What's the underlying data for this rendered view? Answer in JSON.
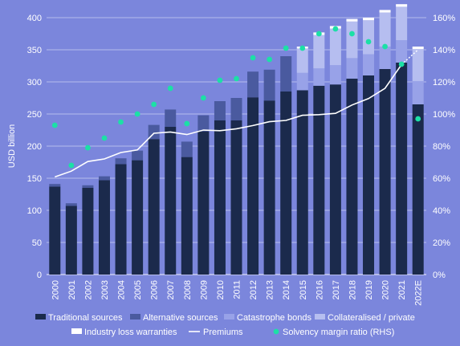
{
  "chart_data": {
    "type": "bar",
    "ylabel": "USD billion",
    "ylim": [
      0,
      400
    ],
    "y2lim": [
      0,
      160
    ],
    "y_ticks": [
      0,
      50,
      100,
      150,
      200,
      250,
      300,
      350,
      400
    ],
    "y2_ticks": [
      "0%",
      "20%",
      "40%",
      "60%",
      "80%",
      "100%",
      "120%",
      "140%",
      "160%"
    ],
    "categories": [
      "2000",
      "2001",
      "2002",
      "2003",
      "2004",
      "2005",
      "2006",
      "2007",
      "2008",
      "2009",
      "2010",
      "2011",
      "2012",
      "2013",
      "2014",
      "2015",
      "2016",
      "2017",
      "2018",
      "2019",
      "2020",
      "2021",
      "2022E"
    ],
    "stacked_series": [
      {
        "name": "Traditional sources",
        "color": "#1b2a4c",
        "values": [
          137,
          107,
          135,
          147,
          172,
          178,
          211,
          230,
          183,
          223,
          240,
          240,
          276,
          271,
          285,
          287,
          294,
          296,
          305,
          310,
          320,
          330,
          265
        ]
      },
      {
        "name": "Alternative sources",
        "color": "#4a5a9f",
        "values": [
          4,
          4,
          4,
          6,
          9,
          15,
          22,
          27,
          24,
          25,
          30,
          35,
          40,
          48,
          55,
          0,
          0,
          0,
          0,
          0,
          0,
          0,
          0
        ]
      },
      {
        "name": "Catastrophe bonds",
        "color": "#98a2e8",
        "values": [
          0,
          0,
          0,
          0,
          0,
          0,
          0,
          0,
          0,
          0,
          0,
          0,
          0,
          0,
          0,
          27,
          27,
          30,
          32,
          33,
          35,
          35,
          36
        ]
      },
      {
        "name": "Collateralised / private",
        "color": "#b6bef0",
        "values": [
          0,
          0,
          0,
          0,
          0,
          0,
          0,
          0,
          0,
          0,
          0,
          0,
          0,
          0,
          0,
          38,
          52,
          57,
          57,
          53,
          53,
          52,
          50
        ]
      },
      {
        "name": "Industry loss warranties",
        "color": "#ffffff",
        "values": [
          0,
          0,
          0,
          0,
          0,
          0,
          0,
          0,
          0,
          0,
          0,
          0,
          0,
          0,
          0,
          3,
          4,
          4,
          4,
          4,
          4,
          4,
          4
        ]
      }
    ],
    "line_series": {
      "name": "Premiums",
      "color": "#ffffff",
      "values": [
        152,
        161,
        176,
        180,
        190,
        194,
        220,
        222,
        218,
        225,
        224,
        227,
        232,
        238,
        240,
        248,
        249,
        251,
        264,
        274,
        290,
        327
      ],
      "projection_to": 350
    },
    "scatter_series": {
      "name": "Solvency margin ratio (RHS)",
      "color": "#1ce0a6",
      "axis": "right",
      "values": [
        93,
        68,
        79,
        85,
        95,
        100,
        106,
        116,
        94,
        110,
        121,
        122,
        135,
        134,
        141,
        141,
        150,
        153,
        150,
        145,
        142,
        131,
        97
      ]
    },
    "legend": [
      {
        "label": "Traditional sources",
        "kind": "box",
        "color": "#1b2a4c"
      },
      {
        "label": "Alternative sources",
        "kind": "box",
        "color": "#4a5a9f"
      },
      {
        "label": "Catastrophe bonds",
        "kind": "box",
        "color": "#98a2e8"
      },
      {
        "label": "Collateralised / private",
        "kind": "box",
        "color": "#b6bef0"
      },
      {
        "label": "Industry loss warranties",
        "kind": "box",
        "color": "#ffffff"
      },
      {
        "label": "Premiums",
        "kind": "line",
        "color": "#ffffff"
      },
      {
        "label": "Solvency margin ratio (RHS)",
        "kind": "dot",
        "color": "#1ce0a6"
      }
    ],
    "legend_position": "bottom",
    "grid": true
  }
}
